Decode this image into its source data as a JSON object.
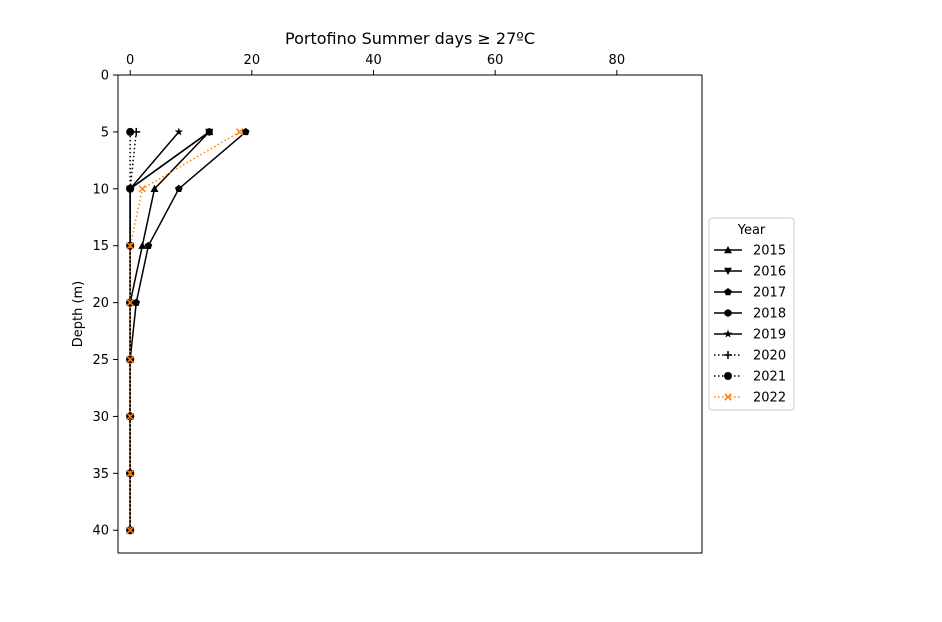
{
  "chart_data": {
    "type": "line",
    "title": "Portofino Summer days ≥ 27ºC",
    "xlabel": "",
    "ylabel": "Depth (m)",
    "x_axis_position": "top",
    "y_inverted": true,
    "xlim": [
      -2,
      94
    ],
    "ylim": [
      42,
      0
    ],
    "xticks": [
      0,
      20,
      40,
      60,
      80
    ],
    "yticks": [
      0,
      5,
      10,
      15,
      20,
      25,
      30,
      35,
      40
    ],
    "grid": false,
    "legend": {
      "title": "Year",
      "placement": "center-right outside"
    },
    "depths": [
      5,
      10,
      15,
      20,
      25,
      30,
      35,
      40
    ],
    "series": [
      {
        "name": "2015",
        "marker": "triangle-up",
        "linestyle": "solid",
        "color": "#000000",
        "values": [
          13,
          4,
          2,
          0,
          0,
          0,
          0,
          0
        ]
      },
      {
        "name": "2016",
        "marker": "triangle-down",
        "linestyle": "solid",
        "color": "#000000",
        "values": [
          13,
          0,
          0,
          0,
          0,
          0,
          0,
          0
        ]
      },
      {
        "name": "2017",
        "marker": "pentagon",
        "linestyle": "solid",
        "color": "#000000",
        "values": [
          19,
          8,
          3,
          1,
          0,
          0,
          0,
          0
        ]
      },
      {
        "name": "2018",
        "marker": "hexagon",
        "linestyle": "solid",
        "color": "#000000",
        "values": [
          13,
          0,
          0,
          0,
          0,
          0,
          0,
          0
        ]
      },
      {
        "name": "2019",
        "marker": "star",
        "linestyle": "solid",
        "color": "#000000",
        "values": [
          8,
          0,
          0,
          0,
          0,
          0,
          0,
          0
        ]
      },
      {
        "name": "2020",
        "marker": "plus",
        "linestyle": "dotted",
        "color": "#000000",
        "values": [
          1,
          0,
          0,
          0,
          0,
          0,
          0,
          0
        ]
      },
      {
        "name": "2021",
        "marker": "circle",
        "linestyle": "dotted",
        "color": "#000000",
        "values": [
          0,
          0,
          0,
          0,
          0,
          0,
          0,
          0
        ]
      },
      {
        "name": "2022",
        "marker": "x",
        "linestyle": "dotted",
        "color": "#ff7f0e",
        "values": [
          18,
          2,
          0,
          0,
          0,
          0,
          0,
          0
        ]
      }
    ]
  }
}
